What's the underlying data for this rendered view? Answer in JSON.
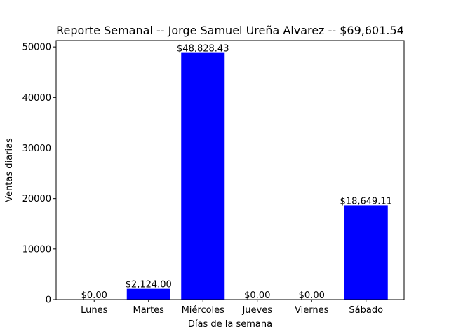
{
  "chart_data": {
    "type": "bar",
    "title": "Reporte Semanal -- Jorge Samuel Ureña Alvarez -- $69,601.54",
    "xlabel": "Días de la semana",
    "ylabel": "Ventas diarias",
    "categories": [
      "Lunes",
      "Martes",
      "Miércoles",
      "Jueves",
      "Viernes",
      "Sábado"
    ],
    "values": [
      0,
      2124.0,
      48828.43,
      0,
      0,
      18649.11
    ],
    "data_labels": [
      "$0.00",
      "$2,124.00",
      "$48,828.43",
      "$0.00",
      "$0.00",
      "$18,649.11"
    ],
    "ylim": [
      0,
      51270
    ],
    "yticks": [
      0,
      10000,
      20000,
      30000,
      40000,
      50000
    ],
    "ytick_labels": [
      "0",
      "10000",
      "20000",
      "30000",
      "40000",
      "50000"
    ],
    "bar_color": "#0000ff",
    "grid": false,
    "legend": "none"
  }
}
